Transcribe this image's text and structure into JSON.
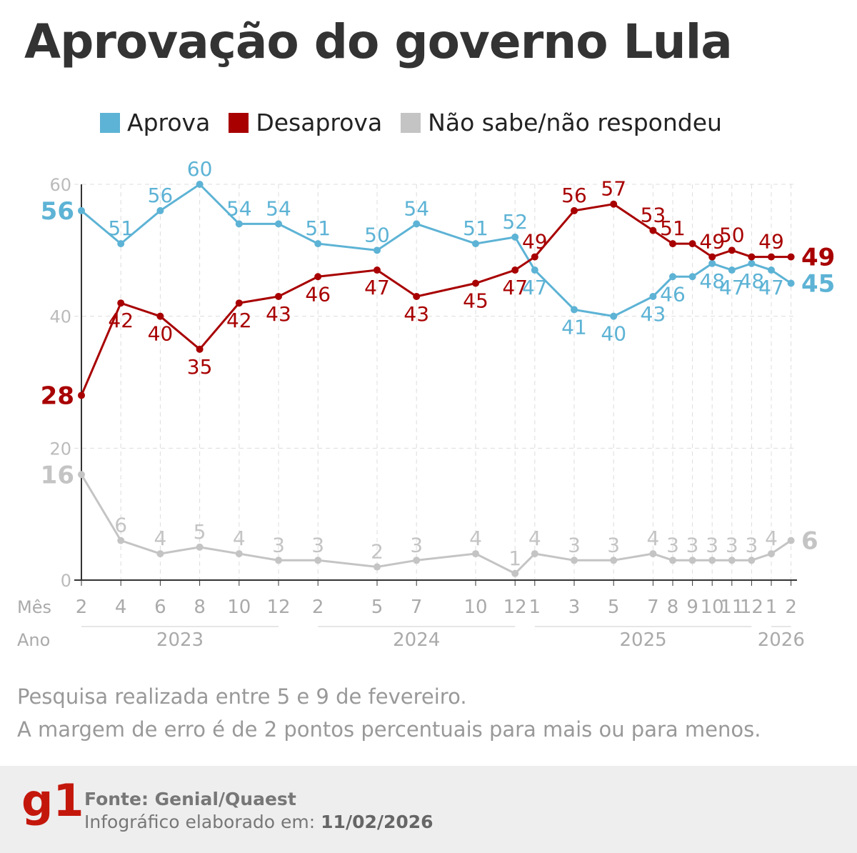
{
  "title": "Aprovação do governo Lula",
  "notes": [
    "Pesquisa realizada entre 5 e 9 de fevereiro.",
    "A margem de erro é de 2 pontos percentuais para mais ou para menos."
  ],
  "footer": {
    "source": "Fonte: Genial/Quaest",
    "made_label": "Infográfico elaborado em:",
    "made_date": "11/02/2026",
    "logo": "g1"
  },
  "chart_data": {
    "type": "line",
    "ylim": [
      0,
      60
    ],
    "yticks": [
      0,
      20,
      40,
      60
    ],
    "grid": true,
    "legend_position": "top",
    "row_labels": {
      "month": "Mês",
      "year": "Ano"
    },
    "months": [
      "2",
      "4",
      "6",
      "8",
      "10",
      "12",
      "2",
      "5",
      "7",
      "10",
      "12",
      "1",
      "3",
      "5",
      "7",
      "8",
      "9",
      "10",
      "11",
      "12",
      "1",
      "2"
    ],
    "month_index": [
      0,
      2,
      4,
      6,
      8,
      10,
      12,
      15,
      17,
      20,
      22,
      23,
      25,
      27,
      29,
      30,
      31,
      32,
      33,
      34,
      35,
      36
    ],
    "years": [
      {
        "label": "2023",
        "from": 0,
        "to": 5
      },
      {
        "label": "2024",
        "from": 6,
        "to": 10
      },
      {
        "label": "2025",
        "from": 11,
        "to": 19
      },
      {
        "label": "2026",
        "from": 20,
        "to": 21
      }
    ],
    "series": [
      {
        "name": "Aprova",
        "color": "#5db3d5",
        "values": [
          56,
          51,
          56,
          60,
          54,
          54,
          51,
          50,
          54,
          51,
          52,
          47,
          41,
          40,
          43,
          46,
          46,
          48,
          47,
          48,
          47,
          45
        ],
        "labels": [
          56,
          51,
          56,
          60,
          54,
          54,
          51,
          50,
          54,
          51,
          52,
          47,
          41,
          40,
          43,
          46,
          null,
          48,
          47,
          48,
          47,
          45
        ]
      },
      {
        "name": "Desaprova",
        "color": "#a80000",
        "values": [
          28,
          42,
          40,
          35,
          42,
          43,
          46,
          47,
          43,
          45,
          47,
          49,
          56,
          57,
          53,
          51,
          51,
          49,
          50,
          49,
          49,
          49
        ],
        "labels": [
          28,
          42,
          40,
          35,
          42,
          43,
          46,
          47,
          43,
          45,
          47,
          49,
          56,
          57,
          53,
          51,
          null,
          49,
          50,
          null,
          49,
          49
        ]
      },
      {
        "name": "Não sabe/não respondeu",
        "color": "#c4c4c4",
        "values": [
          16,
          6,
          4,
          5,
          4,
          3,
          3,
          2,
          3,
          4,
          1,
          4,
          3,
          3,
          4,
          3,
          3,
          3,
          3,
          3,
          4,
          6
        ],
        "labels": [
          16,
          6,
          4,
          5,
          4,
          3,
          3,
          2,
          3,
          4,
          1,
          4,
          3,
          3,
          4,
          3,
          3,
          3,
          3,
          3,
          4,
          6
        ]
      }
    ]
  }
}
